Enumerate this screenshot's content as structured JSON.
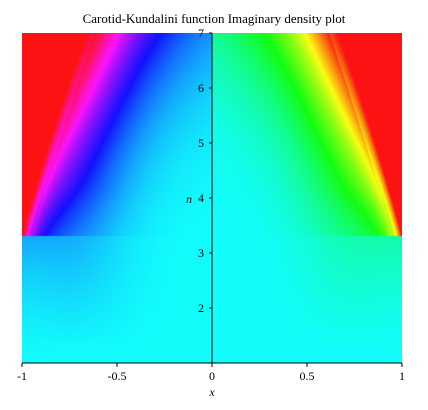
{
  "chart_data": {
    "type": "heatmap",
    "title": "Carotid-Kundalini function Imaginary density plot",
    "xlabel": "x",
    "ylabel": "n",
    "xlim": [
      -1,
      1
    ],
    "ylim": [
      1,
      7
    ],
    "x_ticks": [
      {
        "value": -1,
        "label": "-1"
      },
      {
        "value": -0.5,
        "label": "-0.5"
      },
      {
        "value": 0,
        "label": "0"
      },
      {
        "value": 0.5,
        "label": "0.5"
      },
      {
        "value": 1,
        "label": "1"
      }
    ],
    "y_ticks": [
      {
        "value": 2,
        "label": "2"
      },
      {
        "value": 3,
        "label": "3"
      },
      {
        "value": 4,
        "label": "4"
      },
      {
        "value": 5,
        "label": "5"
      },
      {
        "value": 6,
        "label": "6"
      },
      {
        "value": 7,
        "label": "7"
      }
    ],
    "grid": false,
    "colormap": [
      "#ff0000",
      "#ffff00",
      "#00ff00",
      "#00ffff",
      "#0000ff",
      "#ff00ff",
      "#ff0000"
    ],
    "background_color": "#10eee9",
    "axes_color": "#000000"
  }
}
